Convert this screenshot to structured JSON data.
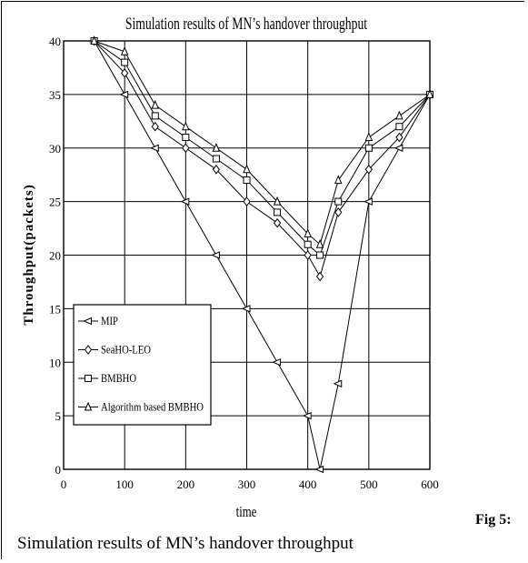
{
  "figure": {
    "label": "Fig 5:",
    "caption": "Simulation results of MN’s handover throughput"
  },
  "chart_data": {
    "type": "line",
    "title": "Simulation results of MN’s handover throughput",
    "xlabel": "time",
    "ylabel": "Throughput(packets)",
    "xlim": [
      0,
      600
    ],
    "ylim": [
      0,
      40
    ],
    "xticks": [
      0,
      100,
      200,
      300,
      400,
      500,
      600
    ],
    "yticks": [
      0,
      5,
      10,
      15,
      20,
      25,
      30,
      35,
      40
    ],
    "grid": true,
    "legend_position": "lower-left",
    "series": [
      {
        "name": "MIP",
        "marker": "triangle-left",
        "x": [
          50,
          100,
          150,
          200,
          250,
          300,
          350,
          400,
          420,
          450,
          500,
          550,
          600
        ],
        "y": [
          40,
          35,
          30,
          25,
          20,
          15,
          10,
          5,
          0,
          8,
          25,
          30,
          35
        ]
      },
      {
        "name": "SeaHO-LEO",
        "marker": "diamond",
        "x": [
          50,
          100,
          150,
          200,
          250,
          300,
          350,
          400,
          420,
          450,
          500,
          550,
          600
        ],
        "y": [
          40,
          37,
          32,
          30,
          28,
          25,
          23,
          20,
          18,
          24,
          28,
          31,
          35
        ]
      },
      {
        "name": "BMBHO",
        "marker": "square",
        "x": [
          50,
          100,
          150,
          200,
          250,
          300,
          350,
          400,
          420,
          450,
          500,
          550,
          600
        ],
        "y": [
          40,
          38,
          33,
          31,
          29,
          27,
          24,
          21,
          20,
          25,
          30,
          32,
          35
        ]
      },
      {
        "name": "Algorithm based BMBHO",
        "marker": "triangle-up",
        "x": [
          50,
          100,
          150,
          200,
          250,
          300,
          350,
          400,
          420,
          450,
          500,
          550,
          600
        ],
        "y": [
          40,
          39,
          34,
          32,
          30,
          28,
          25,
          22,
          21,
          27,
          31,
          33,
          35
        ]
      }
    ]
  }
}
